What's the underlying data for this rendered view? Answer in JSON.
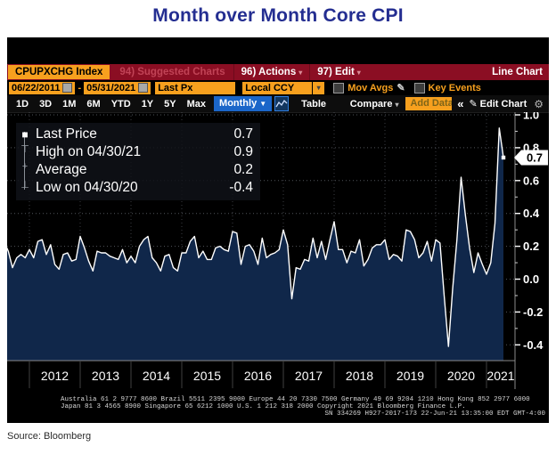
{
  "page_title": "Month over Month Core CPI",
  "terminal": {
    "securities_bar": {
      "ticker": "CPUPXCHG Index",
      "suggested_charts": "94) Suggested Charts",
      "actions": "96) Actions",
      "edit": "97) Edit",
      "view_label": "Line Chart"
    },
    "settings_bar": {
      "date_from": "06/22/2011",
      "range_dash": "-",
      "date_to": "05/31/2021",
      "price_field": "Last Px",
      "currency": "Local CCY",
      "mov_avgs": "Mov Avgs",
      "key_events": "Key Events"
    },
    "toolbar": {
      "ranges": [
        "1D",
        "3D",
        "1M",
        "6M",
        "YTD",
        "1Y",
        "5Y",
        "Max"
      ],
      "period": "Monthly",
      "table_label": "Table",
      "compare_label": "Compare",
      "add_data_placeholder": "Add Data",
      "collapse_glyph": "«",
      "edit_chart_label": "Edit Chart"
    },
    "legend": {
      "rows": [
        {
          "glyph": "■",
          "label": "Last Price",
          "value": "0.7"
        },
        {
          "glyph": "⊤",
          "label": "High on 04/30/21",
          "value": "0.9"
        },
        {
          "glyph": "+",
          "label": "Average",
          "value": "0.2"
        },
        {
          "glyph": "⊥",
          "label": "Low on 04/30/20",
          "value": "-0.4"
        }
      ]
    },
    "footer": {
      "line1": "Australia 61 2 9777 8600 Brazil 5511 2395 9000 Europe 44 20 7330 7500 Germany 49 69 9204 1210 Hong Kong 852 2977 6000",
      "line2": "Japan 81 3 4565 8900        Singapore 65 6212 1000        U.S. 1 212 318 2000        Copyright 2021 Bloomberg Finance L.P.",
      "line3": "SN 334269 H927-2017-173 22-Jun-21 13:35:00 EDT   GMT-4:00"
    }
  },
  "chart_data": {
    "type": "line",
    "title": "Month over Month Core CPI",
    "frequency": "monthly",
    "x_start": "2011-07",
    "x_end": "2021-05",
    "values": [
      0.23,
      0.17,
      0.07,
      0.13,
      0.15,
      0.13,
      0.18,
      0.13,
      0.23,
      0.24,
      0.15,
      0.21,
      0.09,
      0.06,
      0.15,
      0.16,
      0.11,
      0.12,
      0.26,
      0.19,
      0.11,
      0.05,
      0.17,
      0.16,
      0.16,
      0.14,
      0.13,
      0.12,
      0.18,
      0.1,
      0.14,
      0.1,
      0.2,
      0.24,
      0.26,
      0.13,
      0.1,
      0.05,
      0.14,
      0.15,
      0.07,
      0.05,
      0.16,
      0.16,
      0.23,
      0.26,
      0.13,
      0.17,
      0.12,
      0.12,
      0.19,
      0.2,
      0.18,
      0.17,
      0.29,
      0.28,
      0.09,
      0.2,
      0.21,
      0.17,
      0.09,
      0.25,
      0.13,
      0.15,
      0.16,
      0.18,
      0.3,
      0.21,
      -0.12,
      0.07,
      0.06,
      0.12,
      0.11,
      0.25,
      0.13,
      0.23,
      0.12,
      0.24,
      0.35,
      0.18,
      0.18,
      0.1,
      0.17,
      0.16,
      0.24,
      0.08,
      0.12,
      0.19,
      0.21,
      0.21,
      0.24,
      0.12,
      0.15,
      0.14,
      0.11,
      0.3,
      0.29,
      0.24,
      0.13,
      0.16,
      0.23,
      0.11,
      0.24,
      0.22,
      -0.1,
      -0.41,
      -0.06,
      0.24,
      0.62,
      0.39,
      0.19,
      0.04,
      0.16,
      0.09,
      0.03,
      0.1,
      0.34,
      0.92,
      0.74
    ],
    "year_labels": [
      "2012",
      "2013",
      "2014",
      "2015",
      "2016",
      "2017",
      "2018",
      "2019",
      "2020",
      "2021"
    ],
    "yticks": [
      1.0,
      0.8,
      0.6,
      0.4,
      0.2,
      0.0,
      -0.2,
      -0.4
    ],
    "ylim": [
      -0.49,
      1.02
    ],
    "last_price": 0.7,
    "last_price_label": "0.7",
    "high": 0.9,
    "high_date": "04/30/21",
    "low": -0.4,
    "low_date": "04/30/20",
    "average": 0.2,
    "line_color": "#ffffff",
    "fill_color": "#10274a",
    "legend_position": "top-left",
    "grid": true
  },
  "source_note": "Source: Bloomberg"
}
